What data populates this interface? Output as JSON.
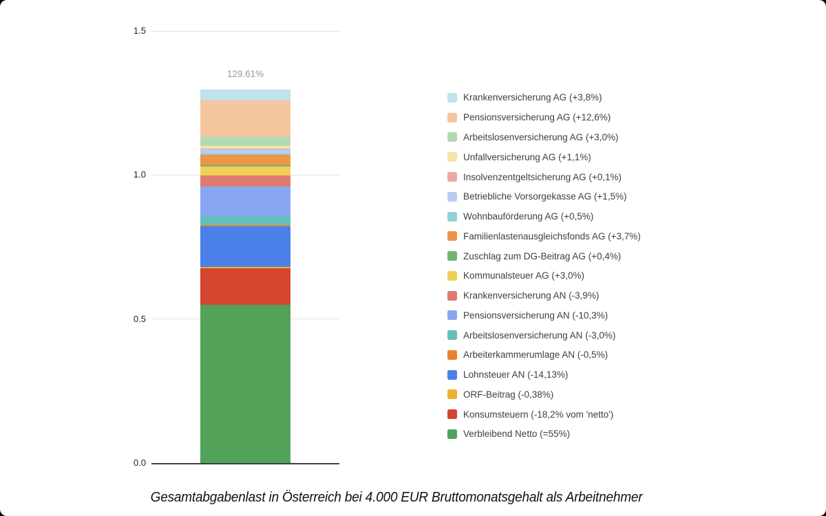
{
  "page": {
    "background": "#000000",
    "card_background": "#ffffff"
  },
  "chart_data": {
    "type": "bar",
    "subtype": "stacked-vertical-single-bar",
    "title": "Gesamtabgabenlast in Österreich bei 4.000 EUR Bruttomonatsgehalt als Arbeitnehmer",
    "total_label": "129.61%",
    "total_value_pct": 129.61,
    "xlabel": "",
    "ylabel": "",
    "ylim": [
      0,
      1.5
    ],
    "yticks": [
      {
        "value": 0.0,
        "label": "0.0"
      },
      {
        "value": 0.5,
        "label": "0.5"
      },
      {
        "value": 1.0,
        "label": "1.0"
      },
      {
        "value": 1.5,
        "label": "1.5"
      }
    ],
    "grid": true,
    "legend_position": "right",
    "series": [
      {
        "label": "Krankenversicherung AG (+3,8%)",
        "value_pct": 3.8,
        "color": "#bfe3e8"
      },
      {
        "label": "Pensionsversicherung AG (+12,6%)",
        "value_pct": 12.6,
        "color": "#f5c69e"
      },
      {
        "label": "Arbeitslosenversicherung AG (+3,0%)",
        "value_pct": 3.0,
        "color": "#b3d8b5"
      },
      {
        "label": "Unfallversicherung AG (+1,1%)",
        "value_pct": 1.1,
        "color": "#f5e5a3"
      },
      {
        "label": "Insolvenzentgeltsicherung AG (+0,1%)",
        "value_pct": 0.1,
        "color": "#eca9a2"
      },
      {
        "label": "Betriebliche Vorsorgekasse AG (+1,5%)",
        "value_pct": 1.5,
        "color": "#b8cdf5"
      },
      {
        "label": "Wohnbauförderung AG (+0,5%)",
        "value_pct": 0.5,
        "color": "#92d1d8"
      },
      {
        "label": "Familienlastenausgleichsfonds AG (+3,7%)",
        "value_pct": 3.7,
        "color": "#ef9348"
      },
      {
        "label": "Zuschlag zum DG-Beitrag AG (+0,4%)",
        "value_pct": 0.4,
        "color": "#72b374"
      },
      {
        "label": "Kommunalsteuer AG (+3,0%)",
        "value_pct": 3.0,
        "color": "#efd055"
      },
      {
        "label": "Krankenversicherung AN (-3,9%)",
        "value_pct": 3.9,
        "color": "#df7a6e"
      },
      {
        "label": "Pensionsversicherung AN (-10,3%)",
        "value_pct": 10.3,
        "color": "#88a7f0"
      },
      {
        "label": "Arbeitslosenversicherung AN (-3,0%)",
        "value_pct": 3.0,
        "color": "#65bfba"
      },
      {
        "label": "Arbeiterkammerumlage AN (-0,5%)",
        "value_pct": 0.5,
        "color": "#e8832e"
      },
      {
        "label": "Lohnsteuer AN (-14,13%)",
        "value_pct": 14.13,
        "color": "#4b80e8"
      },
      {
        "label": "ORF-Beitrag (-0,38%)",
        "value_pct": 0.38,
        "color": "#eeb02e"
      },
      {
        "label": "Konsumsteuern (-18,2% vom 'netto')",
        "value_pct": 12.7,
        "color": "#d5452f"
      },
      {
        "label": "Verbleibend Netto (=55%)",
        "value_pct": 55,
        "color": "#52a25a"
      }
    ]
  },
  "style": {
    "grid_color": "#e3e3e3",
    "baseline_color": "#3f3f3f",
    "tick_label_color": "#1f1f1f",
    "legend_text_color": "#3c4043",
    "total_label_color": "#999999",
    "title_color": "#111111"
  }
}
